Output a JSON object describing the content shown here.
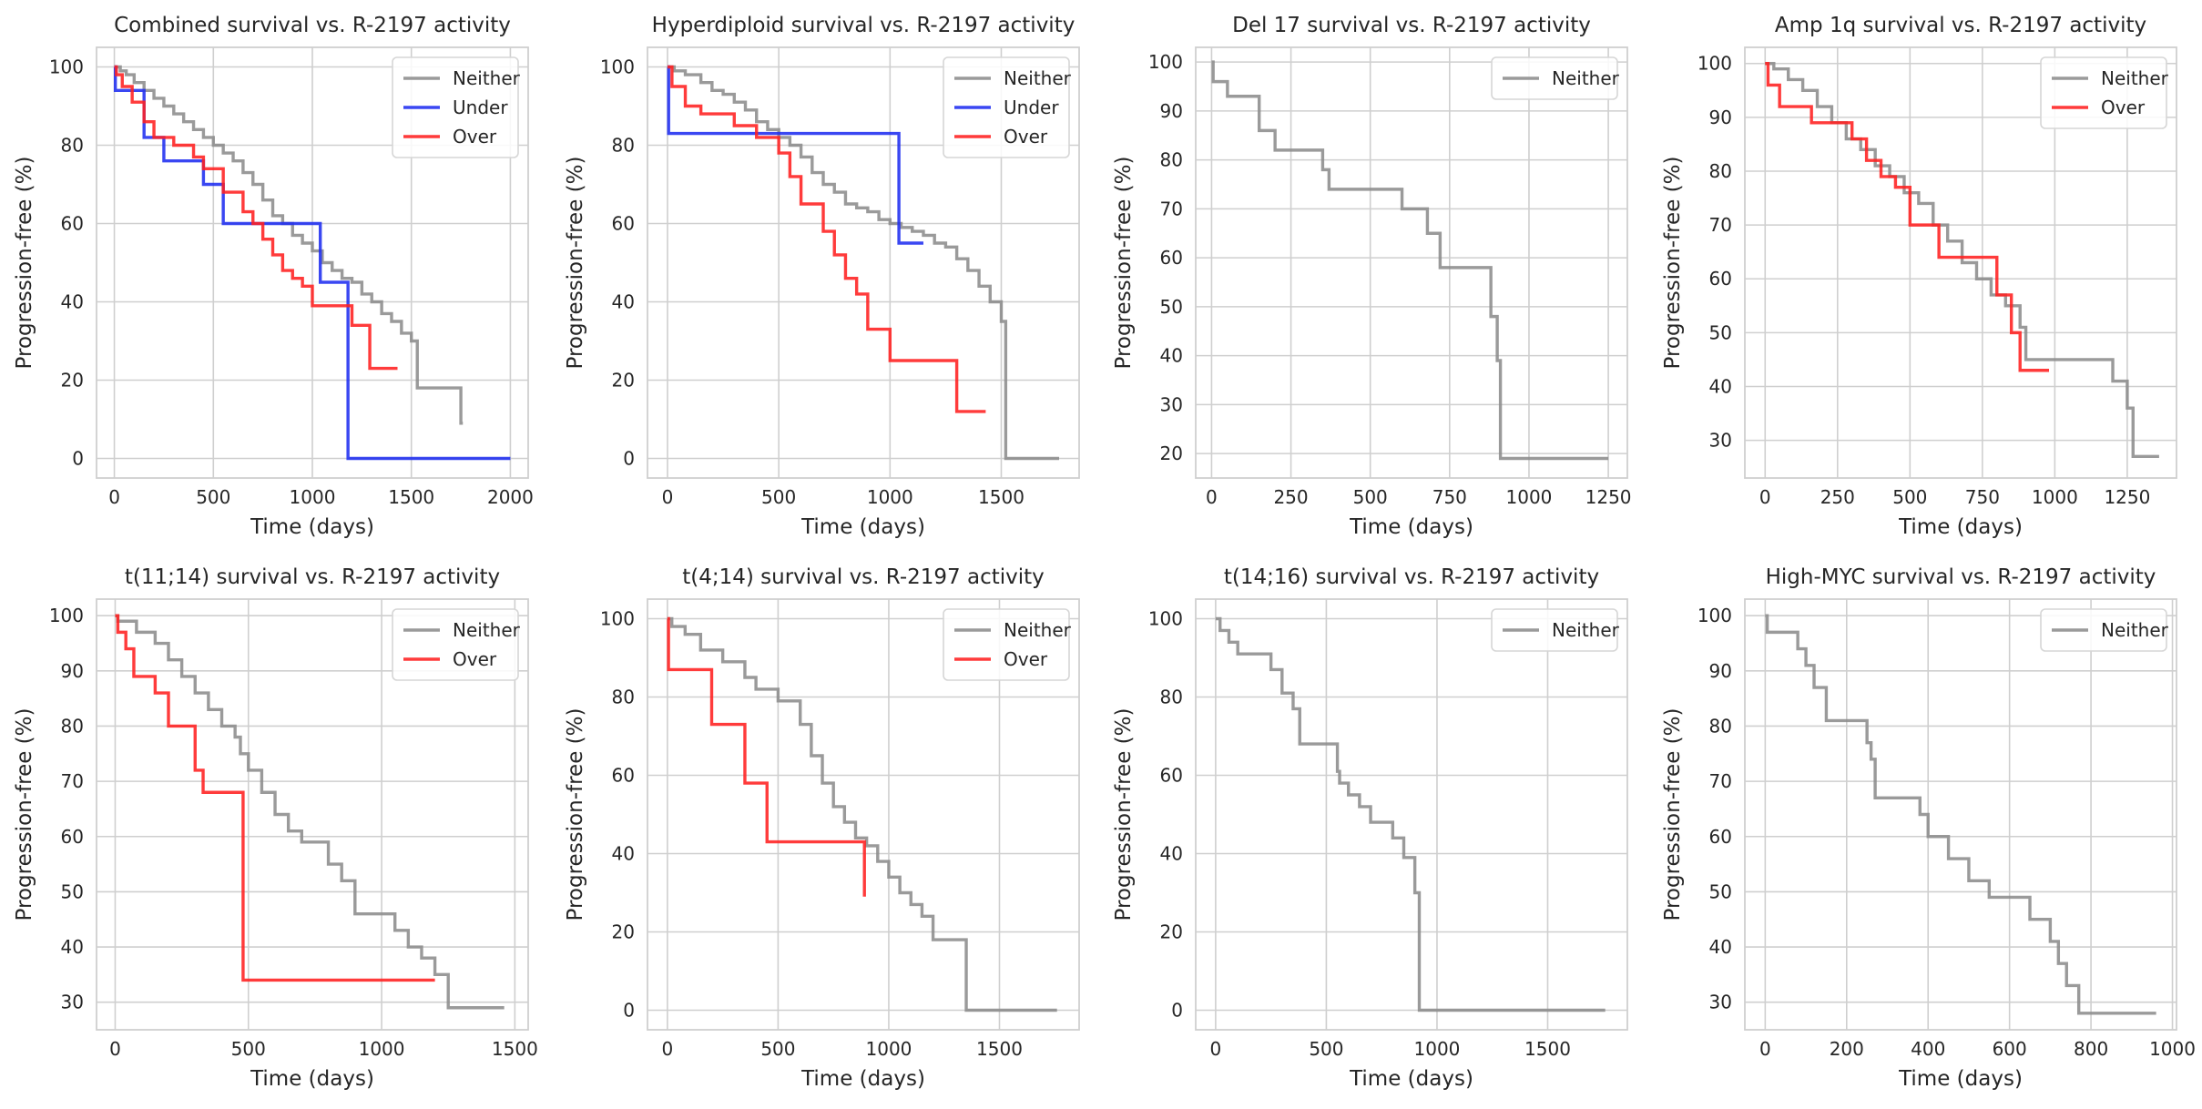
{
  "chart_data": [
    {
      "type": "line",
      "title": "Combined survival vs. R-2197 activity",
      "xlabel": "Time (days)",
      "ylabel": "Progression-free (%)",
      "xlim": [
        -90,
        2090
      ],
      "ylim": [
        -5,
        105
      ],
      "xticks": [
        0,
        500,
        1000,
        1500,
        2000
      ],
      "yticks": [
        0,
        20,
        40,
        60,
        80,
        100
      ],
      "legend": [
        "Neither",
        "Under",
        "Over"
      ],
      "series": [
        {
          "name": "Neither",
          "color": "#8c8c8c",
          "x": [
            0,
            30,
            60,
            100,
            150,
            200,
            250,
            300,
            350,
            400,
            450,
            500,
            550,
            600,
            650,
            700,
            750,
            800,
            850,
            900,
            950,
            1000,
            1050,
            1100,
            1150,
            1200,
            1250,
            1300,
            1350,
            1400,
            1450,
            1500,
            1530,
            1600,
            1750,
            1760
          ],
          "y": [
            100,
            99,
            98,
            96,
            94,
            92,
            90,
            88,
            86,
            84,
            82,
            80,
            78,
            76,
            73,
            70,
            66,
            62,
            60,
            57,
            55,
            53,
            50,
            48,
            46,
            45,
            42,
            40,
            37,
            35,
            32,
            30,
            18,
            18,
            9,
            9
          ]
        },
        {
          "name": "Under",
          "color": "#1f2ef0",
          "x": [
            0,
            5,
            150,
            250,
            450,
            550,
            1040,
            1180,
            2000
          ],
          "y": [
            100,
            94,
            82,
            76,
            70,
            60,
            45,
            0,
            0
          ]
        },
        {
          "name": "Over",
          "color": "#ff2020",
          "x": [
            0,
            10,
            40,
            90,
            150,
            200,
            300,
            400,
            450,
            550,
            650,
            700,
            750,
            800,
            850,
            900,
            950,
            1000,
            1100,
            1200,
            1290,
            1350,
            1430
          ],
          "y": [
            100,
            98,
            95,
            91,
            86,
            82,
            80,
            77,
            74,
            68,
            63,
            60,
            56,
            52,
            48,
            46,
            44,
            39,
            39,
            34,
            23,
            23,
            23
          ]
        }
      ]
    },
    {
      "type": "line",
      "title": "Hyperdiploid survival vs. R-2197 activity",
      "xlabel": "Time (days)",
      "ylabel": "Progression-free (%)",
      "xlim": [
        -90,
        1850
      ],
      "ylim": [
        -5,
        105
      ],
      "xticks": [
        0,
        500,
        1000,
        1500
      ],
      "yticks": [
        0,
        20,
        40,
        60,
        80,
        100
      ],
      "legend": [
        "Neither",
        "Under",
        "Over"
      ],
      "series": [
        {
          "name": "Neither",
          "color": "#8c8c8c",
          "x": [
            0,
            30,
            80,
            150,
            200,
            250,
            300,
            350,
            400,
            450,
            500,
            550,
            600,
            650,
            700,
            750,
            800,
            850,
            900,
            950,
            1000,
            1050,
            1100,
            1150,
            1200,
            1250,
            1300,
            1350,
            1400,
            1450,
            1500,
            1520,
            1760
          ],
          "y": [
            100,
            99,
            98,
            96,
            94,
            93,
            91,
            89,
            86,
            84,
            82,
            80,
            77,
            73,
            70,
            68,
            65,
            64,
            63,
            61,
            60,
            59,
            58,
            57,
            55,
            54,
            51,
            48,
            44,
            40,
            35,
            0,
            0
          ]
        },
        {
          "name": "Under",
          "color": "#1f2ef0",
          "x": [
            0,
            5,
            1040,
            1150
          ],
          "y": [
            100,
            83,
            55,
            55
          ]
        },
        {
          "name": "Over",
          "color": "#ff2020",
          "x": [
            0,
            20,
            80,
            150,
            300,
            400,
            500,
            550,
            600,
            700,
            750,
            800,
            850,
            900,
            1000,
            1300,
            1430
          ],
          "y": [
            100,
            95,
            90,
            88,
            85,
            82,
            78,
            72,
            65,
            58,
            52,
            46,
            42,
            33,
            25,
            12,
            12
          ]
        }
      ]
    },
    {
      "type": "line",
      "title": "Del 17 survival vs. R-2197 activity",
      "xlabel": "Time (days)",
      "ylabel": "Progression-free (%)",
      "xlim": [
        -50,
        1310
      ],
      "ylim": [
        15,
        103
      ],
      "xticks": [
        0,
        250,
        500,
        750,
        1000,
        1250
      ],
      "yticks": [
        20,
        30,
        40,
        50,
        60,
        70,
        80,
        90,
        100
      ],
      "legend": [
        "Neither"
      ],
      "series": [
        {
          "name": "Neither",
          "color": "#8c8c8c",
          "x": [
            0,
            5,
            50,
            150,
            200,
            350,
            370,
            600,
            680,
            720,
            880,
            900,
            910,
            1250
          ],
          "y": [
            100,
            96,
            93,
            86,
            82,
            78,
            74,
            70,
            65,
            58,
            48,
            39,
            19,
            19
          ]
        }
      ]
    },
    {
      "type": "line",
      "title": "Amp 1q survival vs. R-2197 activity",
      "xlabel": "Time (days)",
      "ylabel": "Progression-free (%)",
      "xlim": [
        -70,
        1420
      ],
      "ylim": [
        23,
        103
      ],
      "xticks": [
        0,
        250,
        500,
        750,
        1000,
        1250
      ],
      "yticks": [
        30,
        40,
        50,
        60,
        70,
        80,
        90,
        100
      ],
      "legend": [
        "Neither",
        "Over"
      ],
      "series": [
        {
          "name": "Neither",
          "color": "#8c8c8c",
          "x": [
            0,
            30,
            80,
            130,
            180,
            230,
            280,
            330,
            380,
            430,
            480,
            530,
            580,
            630,
            680,
            730,
            780,
            830,
            880,
            900,
            1200,
            1250,
            1270,
            1360
          ],
          "y": [
            100,
            99,
            97,
            95,
            92,
            89,
            86,
            84,
            81,
            79,
            76,
            74,
            70,
            67,
            63,
            60,
            57,
            55,
            51,
            45,
            41,
            36,
            27,
            27
          ]
        },
        {
          "name": "Over",
          "color": "#ff2020",
          "x": [
            0,
            10,
            50,
            160,
            300,
            350,
            400,
            450,
            500,
            600,
            800,
            850,
            880,
            900,
            980
          ],
          "y": [
            100,
            96,
            92,
            89,
            86,
            82,
            79,
            77,
            70,
            64,
            57,
            50,
            43,
            43,
            43
          ]
        }
      ]
    },
    {
      "type": "line",
      "title": "t(11;14) survival vs. R-2197 activity",
      "xlabel": "Time (days)",
      "ylabel": "Progression-free (%)",
      "xlim": [
        -70,
        1550
      ],
      "ylim": [
        25,
        103
      ],
      "xticks": [
        0,
        500,
        1000,
        1500
      ],
      "yticks": [
        30,
        40,
        50,
        60,
        70,
        80,
        90,
        100
      ],
      "legend": [
        "Neither",
        "Over"
      ],
      "series": [
        {
          "name": "Neither",
          "color": "#8c8c8c",
          "x": [
            0,
            10,
            80,
            150,
            200,
            250,
            300,
            350,
            400,
            450,
            470,
            500,
            550,
            600,
            650,
            700,
            800,
            850,
            900,
            1050,
            1100,
            1150,
            1200,
            1250,
            1460
          ],
          "y": [
            100,
            99,
            97,
            95,
            92,
            89,
            86,
            83,
            80,
            78,
            75,
            72,
            68,
            64,
            61,
            59,
            55,
            52,
            46,
            43,
            40,
            38,
            35,
            29,
            29
          ]
        },
        {
          "name": "Over",
          "color": "#ff2020",
          "x": [
            0,
            10,
            40,
            70,
            150,
            200,
            300,
            330,
            480,
            1200
          ],
          "y": [
            100,
            97,
            94,
            89,
            86,
            80,
            72,
            68,
            34,
            34
          ]
        }
      ]
    },
    {
      "type": "line",
      "title": "t(4;14) survival vs. R-2197 activity",
      "xlabel": "Time (days)",
      "ylabel": "Progression-free (%)",
      "xlim": [
        -90,
        1860
      ],
      "ylim": [
        -5,
        105
      ],
      "xticks": [
        0,
        500,
        1000,
        1500
      ],
      "yticks": [
        0,
        20,
        40,
        60,
        80,
        100
      ],
      "legend": [
        "Neither",
        "Over"
      ],
      "series": [
        {
          "name": "Neither",
          "color": "#8c8c8c",
          "x": [
            0,
            20,
            80,
            150,
            250,
            350,
            400,
            500,
            600,
            650,
            700,
            750,
            800,
            850,
            900,
            950,
            1000,
            1050,
            1100,
            1150,
            1200,
            1350,
            1760
          ],
          "y": [
            100,
            98,
            96,
            92,
            89,
            85,
            82,
            79,
            73,
            65,
            58,
            52,
            48,
            44,
            42,
            38,
            34,
            30,
            27,
            24,
            18,
            0,
            0
          ]
        },
        {
          "name": "Over",
          "color": "#ff2020",
          "x": [
            0,
            5,
            200,
            350,
            450,
            880,
            890
          ],
          "y": [
            100,
            87,
            73,
            58,
            43,
            43,
            29
          ]
        }
      ]
    },
    {
      "type": "line",
      "title": "t(14;16) survival vs. R-2197 activity",
      "xlabel": "Time (days)",
      "ylabel": "Progression-free (%)",
      "xlim": [
        -90,
        1860
      ],
      "ylim": [
        -5,
        105
      ],
      "xticks": [
        0,
        500,
        1000,
        1500
      ],
      "yticks": [
        0,
        20,
        40,
        60,
        80,
        100
      ],
      "legend": [
        "Neither"
      ],
      "series": [
        {
          "name": "Neither",
          "color": "#8c8c8c",
          "x": [
            0,
            20,
            60,
            100,
            250,
            300,
            350,
            380,
            550,
            560,
            600,
            650,
            700,
            800,
            850,
            900,
            920,
            1760
          ],
          "y": [
            100,
            97,
            94,
            91,
            87,
            81,
            77,
            68,
            61,
            58,
            55,
            52,
            48,
            44,
            39,
            30,
            0,
            0
          ]
        }
      ]
    },
    {
      "type": "line",
      "title": "High-MYC survival vs. R-2197 activity",
      "xlabel": "Time (days)",
      "ylabel": "Progression-free (%)",
      "xlim": [
        -50,
        1010
      ],
      "ylim": [
        25,
        103
      ],
      "xticks": [
        0,
        200,
        400,
        600,
        800,
        1000
      ],
      "yticks": [
        30,
        40,
        50,
        60,
        70,
        80,
        90,
        100
      ],
      "legend": [
        "Neither"
      ],
      "series": [
        {
          "name": "Neither",
          "color": "#8c8c8c",
          "x": [
            0,
            5,
            80,
            100,
            120,
            150,
            250,
            260,
            270,
            380,
            400,
            450,
            500,
            550,
            560,
            650,
            700,
            720,
            740,
            770,
            960
          ],
          "y": [
            100,
            97,
            94,
            91,
            87,
            81,
            77,
            74,
            67,
            64,
            60,
            56,
            52,
            49,
            49,
            45,
            41,
            37,
            33,
            28,
            28
          ]
        }
      ]
    }
  ]
}
